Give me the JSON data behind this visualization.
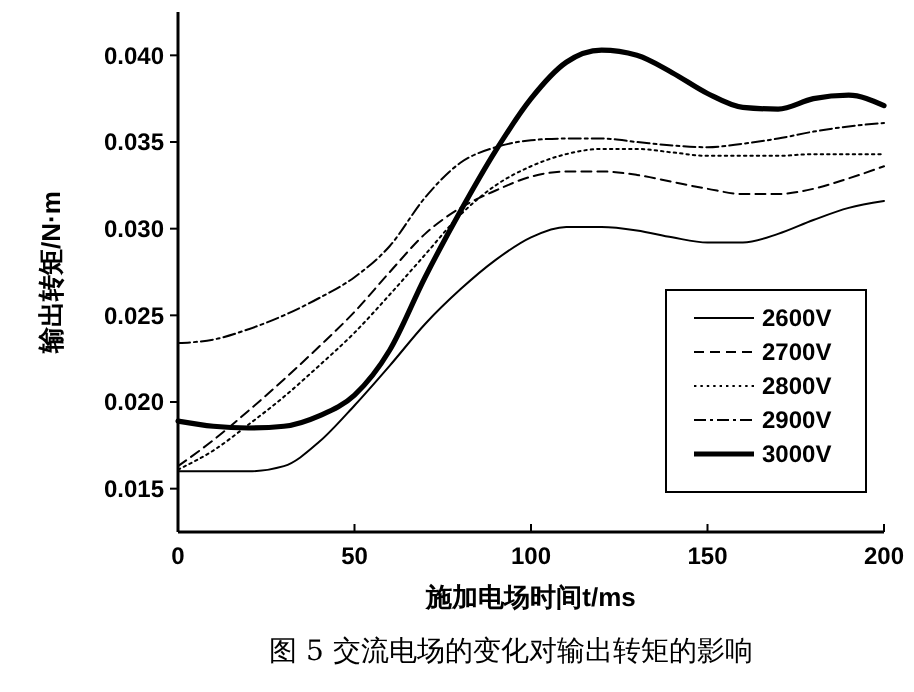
{
  "chart_data": {
    "type": "line",
    "xlabel": "施加电场时间t/ms",
    "ylabel": "输出转矩/N·m",
    "annotations": [
      "图 5  交流电场的变化对输出转矩的影响"
    ],
    "x": [
      0,
      10,
      20,
      30,
      40,
      50,
      60,
      70,
      80,
      90,
      100,
      110,
      120,
      130,
      140,
      150,
      160,
      170,
      180,
      190,
      200
    ],
    "series": [
      {
        "name": "2600V",
        "color": "#000000",
        "line_style": "solid",
        "values": [
          0.016,
          0.016,
          0.016,
          0.0163,
          0.0177,
          0.0198,
          0.0221,
          0.0245,
          0.0265,
          0.0282,
          0.0295,
          0.0301,
          0.0301,
          0.0299,
          0.0295,
          0.0292,
          0.0292,
          0.0297,
          0.0305,
          0.0312,
          0.0316
        ]
      },
      {
        "name": "2700V",
        "color": "#000000",
        "line_style": "dashed",
        "values": [
          0.0163,
          0.0178,
          0.0195,
          0.0213,
          0.0232,
          0.0252,
          0.0275,
          0.0297,
          0.0312,
          0.0322,
          0.033,
          0.0333,
          0.0333,
          0.0331,
          0.0327,
          0.0323,
          0.032,
          0.032,
          0.0323,
          0.0329,
          0.0336
        ]
      },
      {
        "name": "2800V",
        "color": "#000000",
        "line_style": "dotted",
        "values": [
          0.0161,
          0.0172,
          0.0187,
          0.0203,
          0.0221,
          0.024,
          0.0262,
          0.0285,
          0.0308,
          0.0325,
          0.0336,
          0.0343,
          0.0346,
          0.0346,
          0.0344,
          0.0342,
          0.0342,
          0.0342,
          0.0343,
          0.0343,
          0.0343
        ]
      },
      {
        "name": "2900V",
        "color": "#000000",
        "line_style": "dashdot",
        "values": [
          0.0234,
          0.0236,
          0.0242,
          0.025,
          0.026,
          0.0272,
          0.029,
          0.0318,
          0.0338,
          0.0347,
          0.0351,
          0.0352,
          0.0352,
          0.035,
          0.0348,
          0.0347,
          0.0349,
          0.0352,
          0.0356,
          0.0359,
          0.0361
        ]
      },
      {
        "name": "3000V",
        "color": "#000000",
        "line_style": "solid",
        "values": [
          0.0189,
          0.0186,
          0.0185,
          0.0186,
          0.0192,
          0.0204,
          0.023,
          0.0272,
          0.031,
          0.0345,
          0.0375,
          0.0396,
          0.0403,
          0.04,
          0.039,
          0.0378,
          0.037,
          0.0369,
          0.0375,
          0.0377,
          0.0371
        ]
      }
    ],
    "xlim": [
      0,
      200
    ],
    "xticks": [
      0,
      50,
      100,
      150,
      200
    ],
    "ylim": [
      0.0125,
      0.0425
    ],
    "yticks": [
      {
        "value": 0.015,
        "label": "0.015"
      },
      {
        "value": 0.02,
        "label": "0.020"
      },
      {
        "value": 0.025,
        "label": "0.025"
      },
      {
        "value": 0.03,
        "label": "0.030"
      },
      {
        "value": 0.035,
        "label": "0.035"
      },
      {
        "value": 0.04,
        "label": "0.040"
      }
    ],
    "grid": false,
    "legend": "bottom right"
  }
}
